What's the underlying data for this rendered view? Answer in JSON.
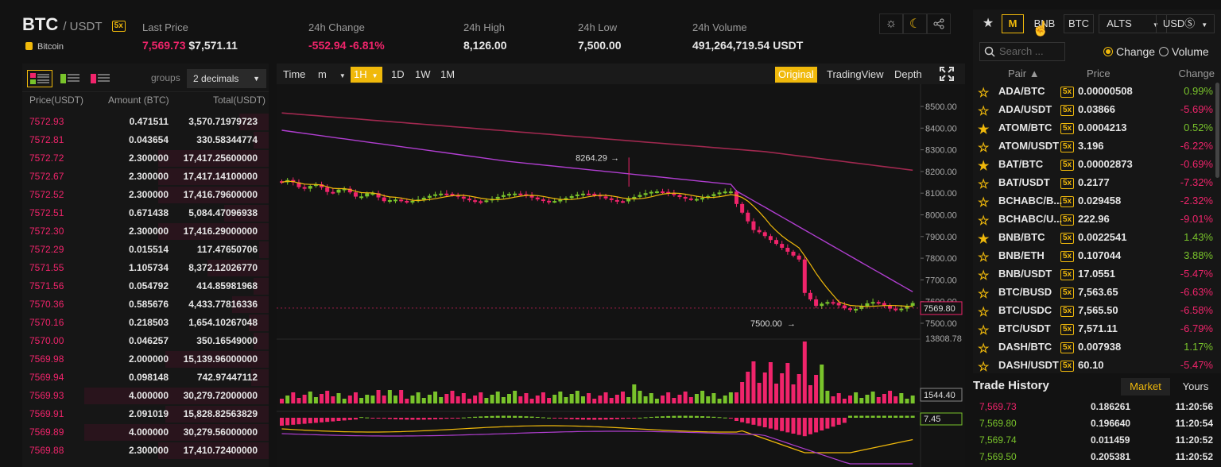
{
  "header": {
    "base": "BTC",
    "quote": "/ USDT",
    "leverage_badge": "5x",
    "coin_name": "Bitcoin",
    "stats": {
      "last_price_label": "Last Price",
      "last_price": "7,569.73",
      "last_price_usd": "$7,571.11",
      "change_label": "24h Change",
      "change_abs": "-552.94",
      "change_pct": "-6.81%",
      "high_label": "24h High",
      "high": "8,126.00",
      "low_label": "24h Low",
      "low": "7,500.00",
      "volume_label": "24h Volume",
      "volume": "491,264,719.54 USDT"
    },
    "icons": [
      "sun-icon",
      "moon-icon",
      "share-icon"
    ]
  },
  "orderbook": {
    "groups_label": "groups",
    "decimals": "2 decimals",
    "col_price": "Price(USDT)",
    "col_amount": "Amount (BTC)",
    "col_total": "Total(USDT)",
    "rows": [
      {
        "price": "7572.93",
        "amount": "0.471511",
        "total": "3,570.71979723",
        "depth": 0.12
      },
      {
        "price": "7572.81",
        "amount": "0.043654",
        "total": "330.58344774",
        "depth": 0.06
      },
      {
        "price": "7572.72",
        "amount": "2.300000",
        "total": "17,417.25600000",
        "depth": 0.45
      },
      {
        "price": "7572.67",
        "amount": "2.300000",
        "total": "17,417.14100000",
        "depth": 0.45
      },
      {
        "price": "7572.52",
        "amount": "2.300000",
        "total": "17,416.79600000",
        "depth": 0.45
      },
      {
        "price": "7572.51",
        "amount": "0.671438",
        "total": "5,084.47096938",
        "depth": 0.18
      },
      {
        "price": "7572.30",
        "amount": "2.300000",
        "total": "17,416.29000000",
        "depth": 0.45
      },
      {
        "price": "7572.29",
        "amount": "0.015514",
        "total": "117.47650706",
        "depth": 0.04
      },
      {
        "price": "7571.55",
        "amount": "1.105734",
        "total": "8,372.12026770",
        "depth": 0.25
      },
      {
        "price": "7571.56",
        "amount": "0.054792",
        "total": "414.85981968",
        "depth": 0.06
      },
      {
        "price": "7570.36",
        "amount": "0.585676",
        "total": "4,433.77816336",
        "depth": 0.15
      },
      {
        "price": "7570.16",
        "amount": "0.218503",
        "total": "1,654.10267048",
        "depth": 0.08
      },
      {
        "price": "7570.00",
        "amount": "0.046257",
        "total": "350.16549000",
        "depth": 0.06
      },
      {
        "price": "7569.98",
        "amount": "2.000000",
        "total": "15,139.96000000",
        "depth": 0.42
      },
      {
        "price": "7569.94",
        "amount": "0.098148",
        "total": "742.97447112",
        "depth": 0.07
      },
      {
        "price": "7569.93",
        "amount": "4.000000",
        "total": "30,279.72000000",
        "depth": 0.75
      },
      {
        "price": "7569.91",
        "amount": "2.091019",
        "total": "15,828.82563829",
        "depth": 0.42
      },
      {
        "price": "7569.89",
        "amount": "4.000000",
        "total": "30,279.56000000",
        "depth": 0.75
      },
      {
        "price": "7569.88",
        "amount": "2.300000",
        "total": "17,410.72400000",
        "depth": 0.45
      }
    ]
  },
  "chart": {
    "toolbar": {
      "time": "Time",
      "unit": "m",
      "interval_active": "1H",
      "intervals": [
        "1D",
        "1W",
        "1M"
      ],
      "views": [
        "Original",
        "TradingView",
        "Depth"
      ]
    },
    "y_ticks": [
      "8500.00",
      "8400.00",
      "8300.00",
      "8200.00",
      "8100.00",
      "8000.00",
      "7900.00",
      "7800.00",
      "7700.00",
      "7600.00",
      "7500.00"
    ],
    "current_price_tag": "7569.80",
    "high_annotation": "8264.29",
    "low_annotation": "7500.00",
    "volume_max_label": "13808.78",
    "volume_tag": "1544.40",
    "macd_tag": "7.45",
    "colors": {
      "up": "#79c32b",
      "down": "#f0246b",
      "ma_short": "#f0b90b",
      "ma_mid": "#b03ed0",
      "ma_long": "#a0284f"
    }
  },
  "pairs": {
    "tabs": [
      "M",
      "BNB",
      "BTC",
      "ALTS",
      "USDⓈ"
    ],
    "search_placeholder": "Search ...",
    "radio_change": "Change",
    "radio_volume": "Volume",
    "col_pair": "Pair ▲",
    "col_price": "Price",
    "col_change": "Change",
    "rows": [
      {
        "pair": "ADA/BTC",
        "price": "0.00000508",
        "change": "0.99%",
        "up": true,
        "fav": false
      },
      {
        "pair": "ADA/USDT",
        "price": "0.03866",
        "change": "-5.69%",
        "up": false,
        "fav": false
      },
      {
        "pair": "ATOM/BTC",
        "price": "0.0004213",
        "change": "0.52%",
        "up": true,
        "fav": true
      },
      {
        "pair": "ATOM/USDT",
        "price": "3.196",
        "change": "-6.22%",
        "up": false,
        "fav": false
      },
      {
        "pair": "BAT/BTC",
        "price": "0.00002873",
        "change": "-0.69%",
        "up": false,
        "fav": true
      },
      {
        "pair": "BAT/USDT",
        "price": "0.2177",
        "change": "-7.32%",
        "up": false,
        "fav": false
      },
      {
        "pair": "BCHABC/B...",
        "price": "0.029458",
        "change": "-2.32%",
        "up": false,
        "fav": false
      },
      {
        "pair": "BCHABC/U...",
        "price": "222.96",
        "change": "-9.01%",
        "up": false,
        "fav": false
      },
      {
        "pair": "BNB/BTC",
        "price": "0.0022541",
        "change": "1.43%",
        "up": true,
        "fav": true
      },
      {
        "pair": "BNB/ETH",
        "price": "0.107044",
        "change": "3.88%",
        "up": true,
        "fav": false
      },
      {
        "pair": "BNB/USDT",
        "price": "17.0551",
        "change": "-5.47%",
        "up": false,
        "fav": false
      },
      {
        "pair": "BTC/BUSD",
        "price": "7,563.65",
        "change": "-6.63%",
        "up": false,
        "fav": false
      },
      {
        "pair": "BTC/USDC",
        "price": "7,565.50",
        "change": "-6.58%",
        "up": false,
        "fav": false
      },
      {
        "pair": "BTC/USDT",
        "price": "7,571.11",
        "change": "-6.79%",
        "up": false,
        "fav": false
      },
      {
        "pair": "DASH/BTC",
        "price": "0.007938",
        "change": "1.17%",
        "up": true,
        "fav": false
      },
      {
        "pair": "DASH/USDT",
        "price": "60.10",
        "change": "-5.47%",
        "up": false,
        "fav": false
      }
    ]
  },
  "trade_history": {
    "title": "Trade History",
    "tab_market": "Market",
    "tab_yours": "Yours",
    "rows": [
      {
        "price": "7,569.73",
        "amount": "0.186261",
        "time": "11:20:56",
        "up": false
      },
      {
        "price": "7,569.80",
        "amount": "0.196640",
        "time": "11:20:54",
        "up": true
      },
      {
        "price": "7,569.74",
        "amount": "0.011459",
        "time": "11:20:52",
        "up": true
      },
      {
        "price": "7,569.50",
        "amount": "0.205381",
        "time": "11:20:52",
        "up": true
      }
    ]
  }
}
